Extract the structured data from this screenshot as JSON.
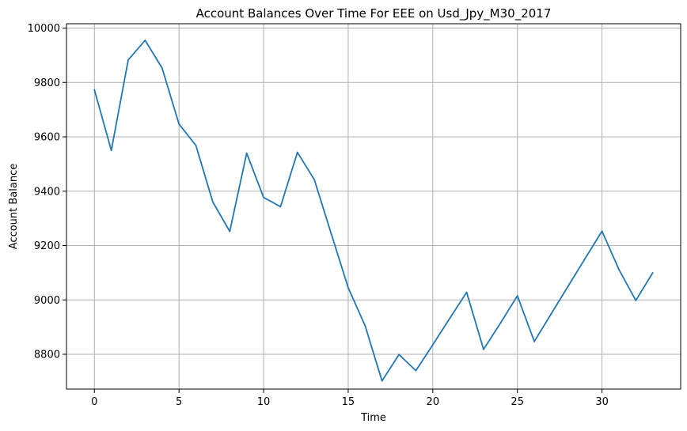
{
  "chart_data": {
    "type": "line",
    "title": "Account Balances Over Time For EEE on Usd_Jpy_M30_2017",
    "xlabel": "Time",
    "ylabel": "Account Balance",
    "x": [
      0,
      1,
      2,
      3,
      4,
      5,
      6,
      7,
      8,
      9,
      10,
      11,
      12,
      13,
      14,
      15,
      16,
      17,
      18,
      19,
      20,
      21,
      22,
      23,
      24,
      25,
      26,
      27,
      28,
      29,
      30,
      31,
      32,
      33
    ],
    "series": [
      {
        "values": [
          9773,
          9550,
          9883,
          9955,
          9853,
          9647,
          9568,
          9360,
          9252,
          9540,
          9377,
          9343,
          9543,
          9442,
          9243,
          9045,
          8905,
          8702,
          8799,
          8740,
          8835,
          8932,
          9028,
          8818,
          8915,
          9015,
          8847,
          8949,
          9051,
          9152,
          9253,
          9112,
          8998,
          9100
        ]
      }
    ],
    "xlim": [
      -1.65,
      34.65
    ],
    "ylim": [
      8672,
      10016
    ],
    "xticks": [
      0,
      5,
      10,
      15,
      20,
      25,
      30
    ],
    "yticks": [
      8800,
      9000,
      9200,
      9400,
      9600,
      9800,
      10000
    ],
    "grid": true,
    "line_color": "#1f77b4",
    "grid_color": "#b0b0b0"
  }
}
